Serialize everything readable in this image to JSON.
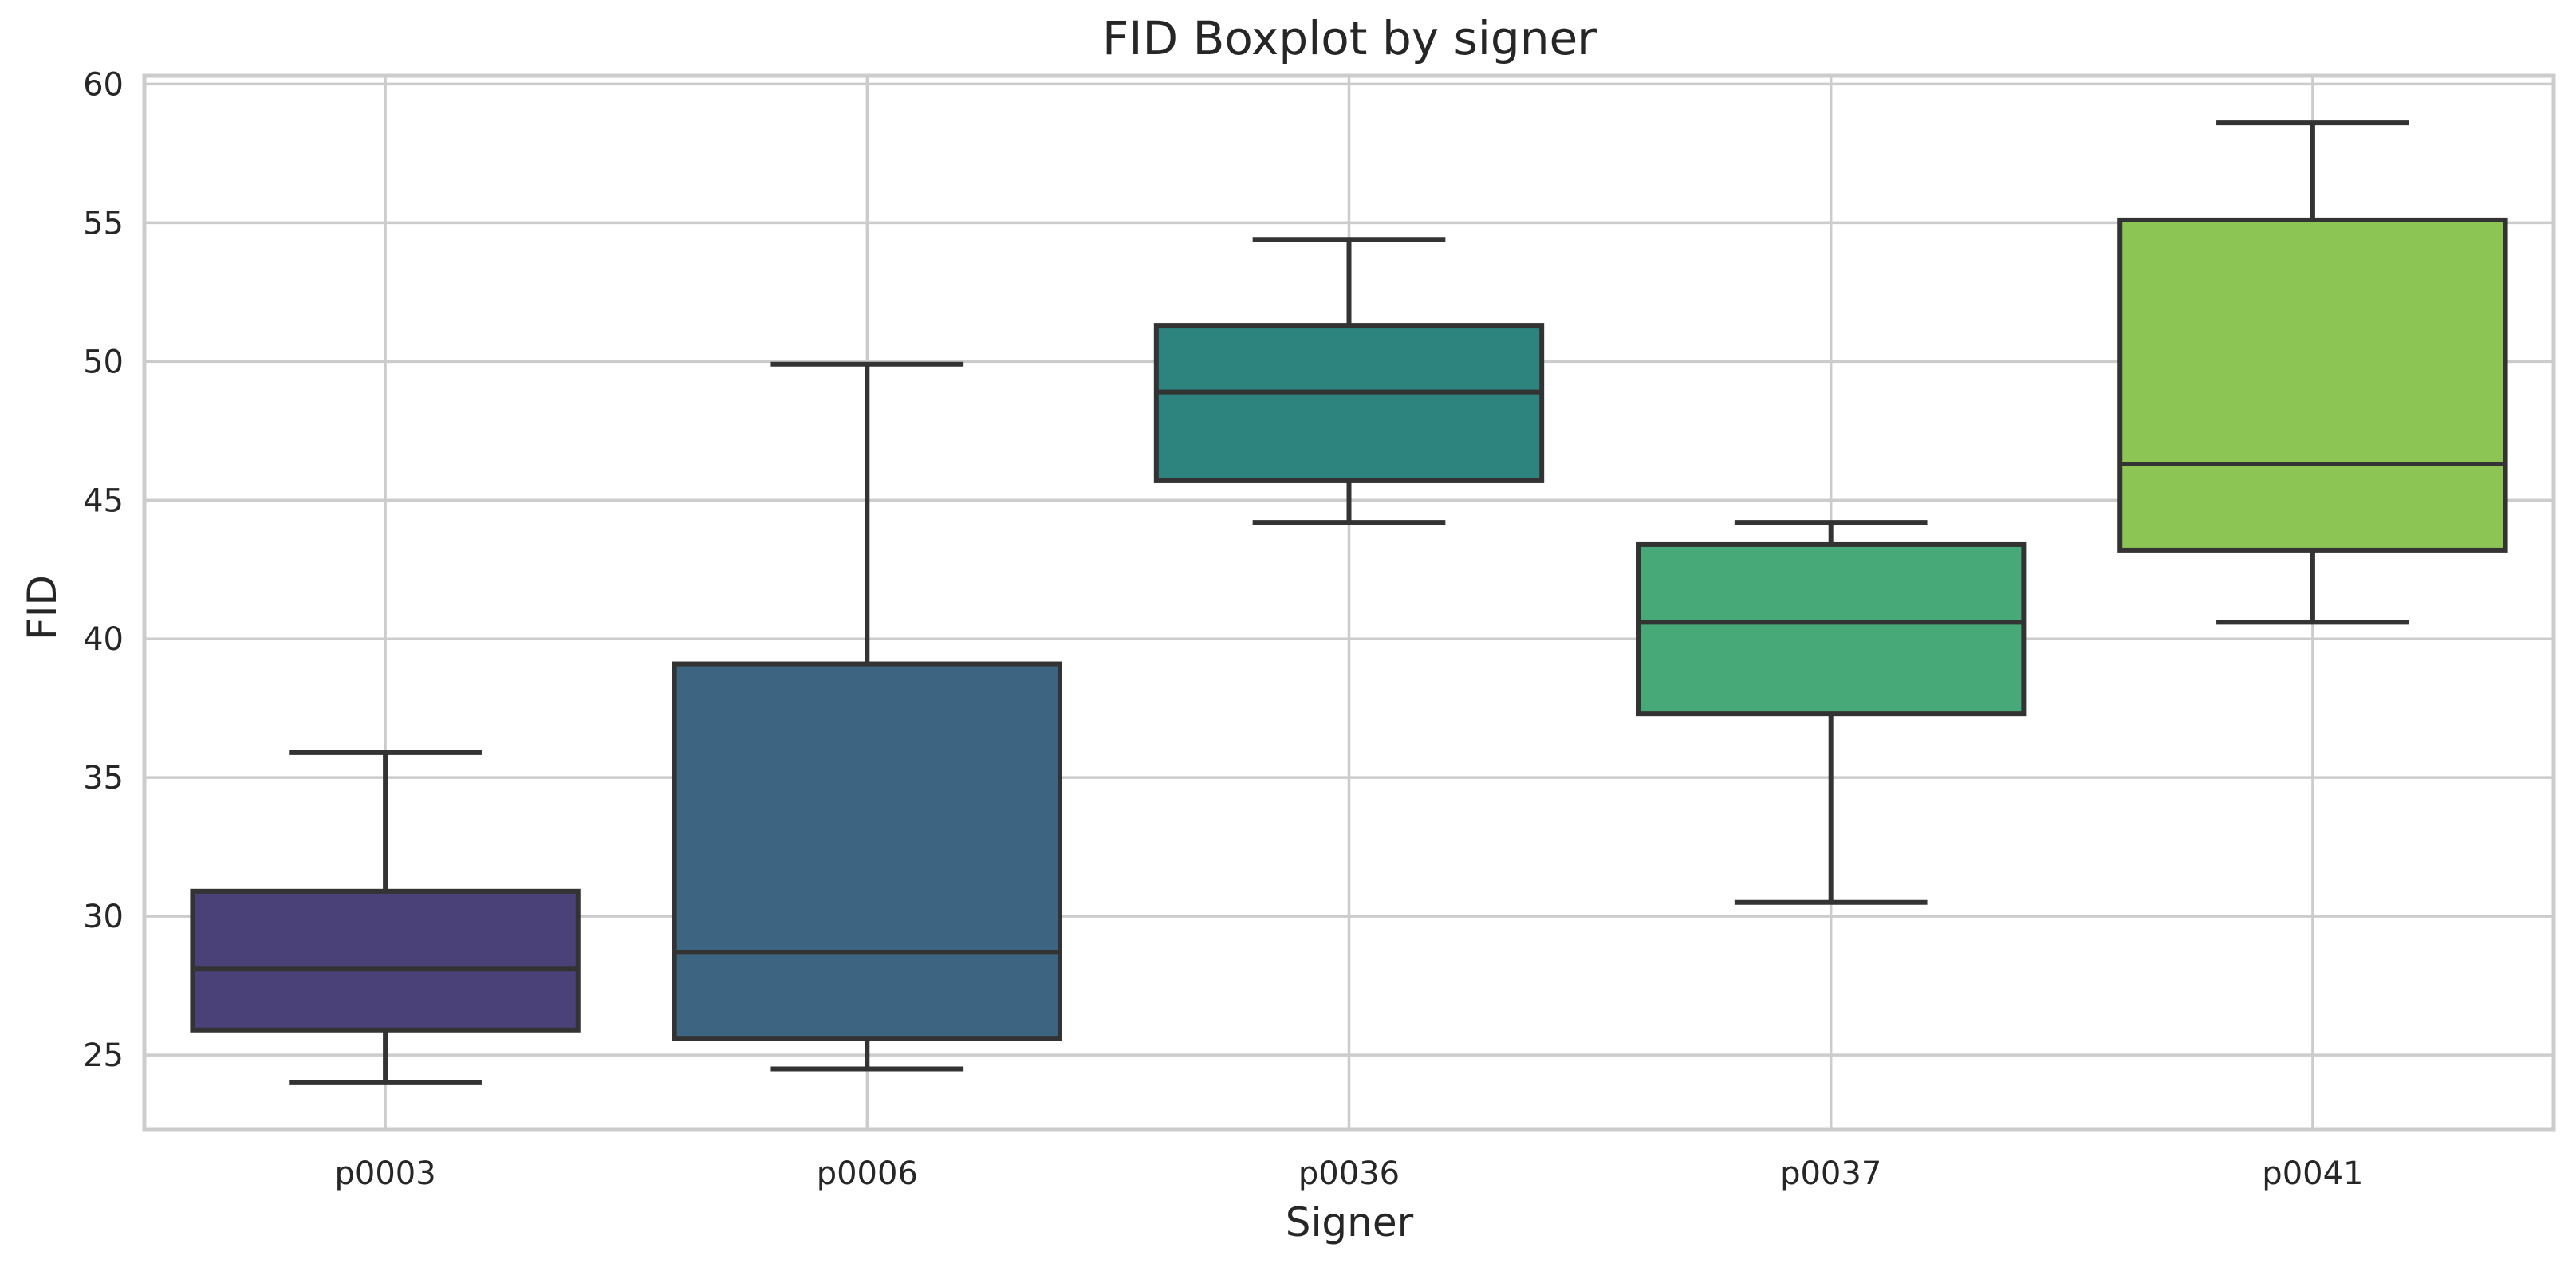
{
  "chart_data": {
    "type": "box",
    "title": "FID Boxplot by signer",
    "xlabel": "Signer",
    "ylabel": "FID",
    "ylim": [
      22.3,
      60.3
    ],
    "yticks": [
      25,
      30,
      35,
      40,
      45,
      50,
      55,
      60
    ],
    "grid": true,
    "categories": [
      "p0003",
      "p0006",
      "p0036",
      "p0037",
      "p0041"
    ],
    "boxes": [
      {
        "label": "p0003",
        "whisker_low": 24.0,
        "q1": 25.9,
        "median": 28.1,
        "q3": 30.9,
        "whisker_high": 35.9,
        "color": "#4a4178"
      },
      {
        "label": "p0006",
        "whisker_low": 24.5,
        "q1": 25.6,
        "median": 28.7,
        "q3": 39.1,
        "whisker_high": 49.9,
        "color": "#3d6582"
      },
      {
        "label": "p0036",
        "whisker_low": 44.2,
        "q1": 45.7,
        "median": 48.9,
        "q3": 51.3,
        "whisker_high": 54.4,
        "color": "#2d847f"
      },
      {
        "label": "p0037",
        "whisker_low": 30.5,
        "q1": 37.3,
        "median": 40.6,
        "q3": 43.4,
        "whisker_high": 44.2,
        "color": "#47a878"
      },
      {
        "label": "p0041",
        "whisker_low": 40.6,
        "q1": 43.2,
        "median": 46.3,
        "q3": 55.1,
        "whisker_high": 58.6,
        "color": "#8dc555"
      }
    ]
  }
}
